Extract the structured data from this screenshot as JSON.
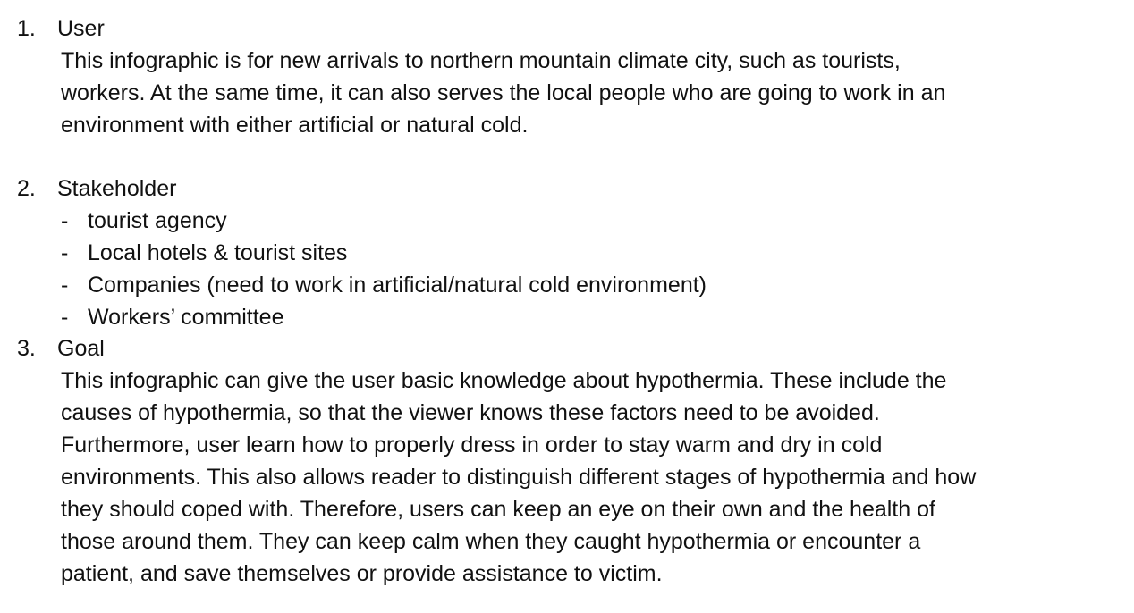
{
  "sections": [
    {
      "number": "1.",
      "heading": "User",
      "lines": [
        "This infographic is for new arrivals to northern mountain climate city, such as tourists,",
        "workers. At the same time, it can also serves the local people who are going to work in an",
        "environment with either artificial or natural cold."
      ]
    },
    {
      "number": "2.",
      "heading": "Stakeholder",
      "bullet_marker": "-",
      "items": [
        "tourist agency",
        "Local hotels & tourist sites",
        "Companies (need to work in artificial/natural cold environment)",
        "Workers’ committee"
      ]
    },
    {
      "number": "3.",
      "heading": "Goal",
      "lines": [
        "This infographic can give the user basic knowledge about hypothermia. These include the",
        "causes of hypothermia, so that the viewer knows these factors need to be avoided.",
        "Furthermore, user learn how to properly dress in order to stay warm and dry in cold",
        "environments. This also allows reader to distinguish different stages of hypothermia and how",
        "they should coped with. Therefore, users can keep an eye on their own and the health of",
        "those around them. They can keep calm when they caught hypothermia or encounter a",
        "patient, and save themselves or provide assistance to victim."
      ]
    }
  ]
}
